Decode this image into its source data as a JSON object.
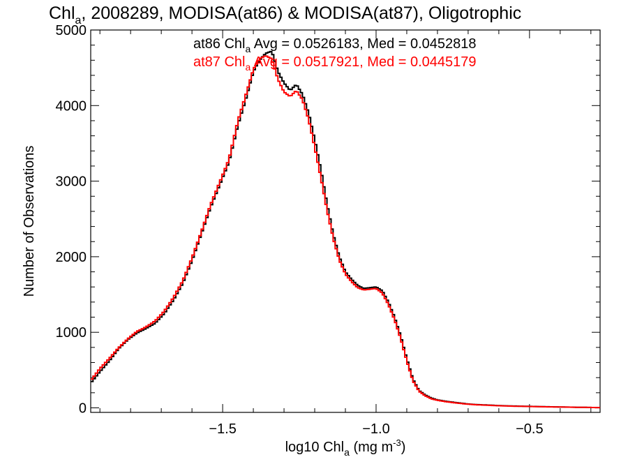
{
  "chart_data": {
    "type": "line",
    "title_parts": [
      "Chl",
      "a",
      ", 2008289, MODISA(at86) & MODISA(at87), Oligotrophic"
    ],
    "xlabel_parts": [
      "log10 Chl",
      "a",
      " (mg m",
      "-3",
      ")"
    ],
    "ylabel": "Number of Observations",
    "xlim": [
      -1.93,
      -0.27
    ],
    "ylim": [
      -60,
      5000
    ],
    "x_ticks": [
      -1.5,
      -1.0,
      -0.5
    ],
    "x_tick_labels": [
      "−1.5",
      "−1.0",
      "−0.5"
    ],
    "y_ticks": [
      0,
      1000,
      2000,
      3000,
      4000,
      5000
    ],
    "y_tick_labels": [
      "0",
      "1000",
      "2000",
      "3000",
      "4000",
      "5000"
    ],
    "grid": false,
    "legend": [
      {
        "series": "at86",
        "parts": [
          "at86 Chl",
          "a",
          " Avg = 0.0526183, Med = 0.0452818"
        ],
        "color": "#000000"
      },
      {
        "series": "at87",
        "parts": [
          "at87 Chl",
          "a",
          " Avg = 0.0517921, Med = 0.0445179"
        ],
        "color": "#ff0000"
      }
    ],
    "series": [
      {
        "name": "at86",
        "color": "#000000",
        "points": [
          [
            -1.93,
            330
          ],
          [
            -1.9,
            480
          ],
          [
            -1.87,
            620
          ],
          [
            -1.84,
            780
          ],
          [
            -1.81,
            900
          ],
          [
            -1.78,
            990
          ],
          [
            -1.75,
            1050
          ],
          [
            -1.72,
            1120
          ],
          [
            -1.69,
            1250
          ],
          [
            -1.66,
            1430
          ],
          [
            -1.63,
            1650
          ],
          [
            -1.6,
            1950
          ],
          [
            -1.57,
            2300
          ],
          [
            -1.54,
            2650
          ],
          [
            -1.51,
            2950
          ],
          [
            -1.48,
            3250
          ],
          [
            -1.45,
            3750
          ],
          [
            -1.42,
            4150
          ],
          [
            -1.4,
            4450
          ],
          [
            -1.38,
            4600
          ],
          [
            -1.36,
            4690
          ],
          [
            -1.34,
            4720
          ],
          [
            -1.32,
            4450
          ],
          [
            -1.3,
            4300
          ],
          [
            -1.28,
            4200
          ],
          [
            -1.26,
            4280
          ],
          [
            -1.24,
            4150
          ],
          [
            -1.22,
            3900
          ],
          [
            -1.2,
            3550
          ],
          [
            -1.18,
            3150
          ],
          [
            -1.16,
            2700
          ],
          [
            -1.14,
            2300
          ],
          [
            -1.12,
            2000
          ],
          [
            -1.1,
            1800
          ],
          [
            -1.08,
            1700
          ],
          [
            -1.06,
            1620
          ],
          [
            -1.04,
            1580
          ],
          [
            -1.02,
            1590
          ],
          [
            -1.0,
            1600
          ],
          [
            -0.98,
            1550
          ],
          [
            -0.96,
            1400
          ],
          [
            -0.94,
            1200
          ],
          [
            -0.92,
            950
          ],
          [
            -0.9,
            650
          ],
          [
            -0.88,
            380
          ],
          [
            -0.86,
            230
          ],
          [
            -0.84,
            170
          ],
          [
            -0.82,
            130
          ],
          [
            -0.8,
            105
          ],
          [
            -0.77,
            85
          ],
          [
            -0.74,
            70
          ],
          [
            -0.71,
            55
          ],
          [
            -0.68,
            45
          ],
          [
            -0.64,
            38
          ],
          [
            -0.6,
            30
          ],
          [
            -0.55,
            24
          ],
          [
            -0.5,
            20
          ],
          [
            -0.45,
            15
          ],
          [
            -0.4,
            12
          ],
          [
            -0.35,
            8
          ],
          [
            -0.3,
            5
          ],
          [
            -0.27,
            3
          ]
        ]
      },
      {
        "name": "at87",
        "color": "#ff0000",
        "points": [
          [
            -1.93,
            360
          ],
          [
            -1.9,
            520
          ],
          [
            -1.87,
            650
          ],
          [
            -1.84,
            790
          ],
          [
            -1.81,
            910
          ],
          [
            -1.78,
            1010
          ],
          [
            -1.75,
            1070
          ],
          [
            -1.72,
            1150
          ],
          [
            -1.69,
            1280
          ],
          [
            -1.66,
            1460
          ],
          [
            -1.63,
            1680
          ],
          [
            -1.6,
            1980
          ],
          [
            -1.57,
            2320
          ],
          [
            -1.54,
            2680
          ],
          [
            -1.51,
            2980
          ],
          [
            -1.48,
            3280
          ],
          [
            -1.45,
            3800
          ],
          [
            -1.42,
            4200
          ],
          [
            -1.4,
            4480
          ],
          [
            -1.38,
            4620
          ],
          [
            -1.36,
            4660
          ],
          [
            -1.34,
            4620
          ],
          [
            -1.32,
            4350
          ],
          [
            -1.3,
            4180
          ],
          [
            -1.28,
            4120
          ],
          [
            -1.26,
            4200
          ],
          [
            -1.24,
            4080
          ],
          [
            -1.22,
            3820
          ],
          [
            -1.2,
            3450
          ],
          [
            -1.18,
            3050
          ],
          [
            -1.16,
            2620
          ],
          [
            -1.14,
            2250
          ],
          [
            -1.12,
            1960
          ],
          [
            -1.1,
            1770
          ],
          [
            -1.08,
            1670
          ],
          [
            -1.06,
            1590
          ],
          [
            -1.04,
            1560
          ],
          [
            -1.02,
            1570
          ],
          [
            -1.0,
            1580
          ],
          [
            -0.98,
            1520
          ],
          [
            -0.96,
            1370
          ],
          [
            -0.94,
            1170
          ],
          [
            -0.92,
            920
          ],
          [
            -0.9,
            620
          ],
          [
            -0.88,
            360
          ],
          [
            -0.86,
            220
          ],
          [
            -0.84,
            160
          ],
          [
            -0.82,
            120
          ],
          [
            -0.8,
            100
          ],
          [
            -0.77,
            80
          ],
          [
            -0.74,
            65
          ],
          [
            -0.71,
            52
          ],
          [
            -0.68,
            42
          ],
          [
            -0.64,
            35
          ],
          [
            -0.6,
            28
          ],
          [
            -0.55,
            22
          ],
          [
            -0.5,
            18
          ],
          [
            -0.45,
            14
          ],
          [
            -0.4,
            11
          ],
          [
            -0.35,
            8
          ],
          [
            -0.3,
            5
          ],
          [
            -0.27,
            3
          ]
        ]
      }
    ]
  }
}
